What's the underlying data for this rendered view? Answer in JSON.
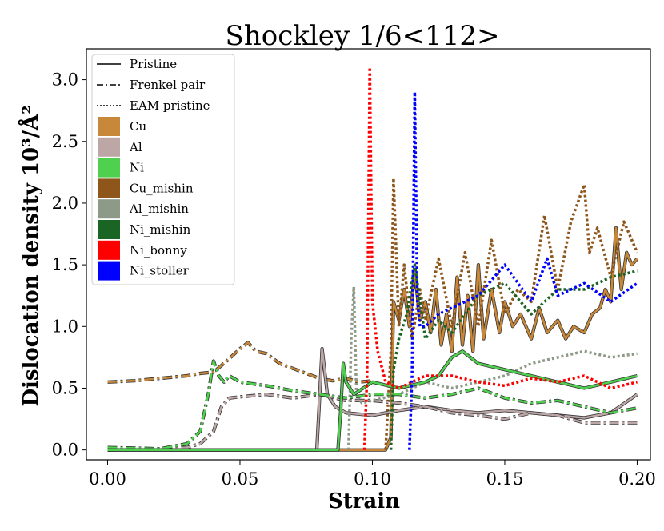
{
  "chart_data": {
    "type": "line",
    "title": "Shockley  1/6<112>",
    "xlabel": "Strain",
    "ylabel": "Dislocation density 10³/Å²",
    "xlim": [
      -0.008,
      0.205
    ],
    "ylim": [
      -0.08,
      3.25
    ],
    "xticks": [
      0.0,
      0.05,
      0.1,
      0.15,
      0.2
    ],
    "xtick_labels": [
      "0.00",
      "0.05",
      "0.10",
      "0.15",
      "0.20"
    ],
    "yticks": [
      0.0,
      0.5,
      1.0,
      1.5,
      2.0,
      2.5,
      3.0
    ],
    "ytick_labels": [
      "0.0",
      "0.5",
      "1.0",
      "1.5",
      "2.0",
      "2.5",
      "3.0"
    ],
    "grid": false,
    "legend_position": "top-left",
    "legend": {
      "styles": [
        {
          "label": "Pristine",
          "dash": "solid"
        },
        {
          "label": "Frenkel pair",
          "dash": "dashdot"
        },
        {
          "label": "EAM pristine",
          "dash": "dotted"
        }
      ],
      "materials": [
        {
          "label": "Cu",
          "color": "#c8883a"
        },
        {
          "label": "Al",
          "color": "#bca6a6"
        },
        {
          "label": "Ni",
          "color": "#4fd04f"
        },
        {
          "label": "Cu_mishin",
          "color": "#8f561c"
        },
        {
          "label": "Al_mishin",
          "color": "#8e9a88"
        },
        {
          "label": "Ni_mishin",
          "color": "#1a6424"
        },
        {
          "label": "Ni_bonny",
          "color": "#ff0000"
        },
        {
          "label": "Ni_stoller",
          "color": "#0000ff"
        }
      ]
    },
    "series": [
      {
        "name": "Cu Frenkel pair",
        "color": "#c8883a",
        "dash": "dashdot",
        "outline": true,
        "x": [
          0,
          0.01,
          0.02,
          0.03,
          0.035,
          0.04,
          0.045,
          0.05,
          0.053,
          0.056,
          0.06,
          0.065,
          0.07,
          0.075,
          0.08,
          0.085,
          0.09,
          0.095,
          0.1
        ],
        "y": [
          0.55,
          0.56,
          0.58,
          0.6,
          0.62,
          0.63,
          0.72,
          0.82,
          0.87,
          0.8,
          0.78,
          0.7,
          0.66,
          0.62,
          0.58,
          0.56,
          0.58,
          0.55,
          0.56
        ]
      },
      {
        "name": "Cu Pristine",
        "color": "#c8883a",
        "dash": "solid",
        "outline": true,
        "x": [
          0,
          0.105,
          0.107,
          0.108,
          0.11,
          0.112,
          0.114,
          0.116,
          0.118,
          0.12,
          0.122,
          0.124,
          0.126,
          0.128,
          0.13,
          0.132,
          0.134,
          0.136,
          0.138,
          0.14,
          0.142,
          0.145,
          0.148,
          0.15,
          0.153,
          0.156,
          0.16,
          0.163,
          0.166,
          0.17,
          0.173,
          0.176,
          0.18,
          0.183,
          0.186,
          0.188,
          0.19,
          0.192,
          0.194,
          0.196,
          0.198,
          0.2
        ],
        "y": [
          0,
          0,
          0.1,
          1.2,
          1.05,
          1.3,
          1.0,
          1.45,
          1.05,
          1.2,
          0.95,
          1.3,
          0.85,
          1.1,
          0.8,
          1.4,
          0.85,
          1.25,
          0.8,
          1.5,
          0.9,
          1.3,
          0.95,
          1.2,
          1.0,
          1.1,
          0.9,
          1.15,
          0.95,
          1.05,
          0.9,
          1.0,
          0.95,
          1.1,
          1.15,
          1.3,
          1.2,
          1.8,
          1.3,
          1.6,
          1.5,
          1.55
        ]
      },
      {
        "name": "Cu_mishin EAM pristine",
        "color": "#8f561c",
        "dash": "dotted",
        "x": [
          0.105,
          0.107,
          0.108,
          0.11,
          0.112,
          0.115,
          0.118,
          0.12,
          0.125,
          0.13,
          0.135,
          0.14,
          0.145,
          0.15,
          0.155,
          0.16,
          0.165,
          0.17,
          0.175,
          0.18,
          0.182,
          0.185,
          0.19,
          0.195,
          0.2
        ],
        "y": [
          0,
          0.8,
          2.2,
          1.0,
          1.5,
          0.9,
          1.3,
          1.05,
          1.55,
          1.0,
          1.6,
          1.0,
          1.7,
          1.1,
          1.3,
          1.2,
          1.9,
          1.3,
          1.85,
          2.15,
          1.6,
          1.8,
          1.4,
          1.85,
          1.6
        ]
      },
      {
        "name": "Al Pristine",
        "color": "#bca6a6",
        "dash": "solid",
        "outline": true,
        "x": [
          0,
          0.079,
          0.08,
          0.081,
          0.083,
          0.086,
          0.09,
          0.1,
          0.11,
          0.12,
          0.13,
          0.14,
          0.15,
          0.16,
          0.17,
          0.18,
          0.19,
          0.2
        ],
        "y": [
          0,
          0,
          0.4,
          0.82,
          0.45,
          0.35,
          0.3,
          0.28,
          0.32,
          0.35,
          0.32,
          0.3,
          0.32,
          0.3,
          0.28,
          0.26,
          0.3,
          0.45
        ]
      },
      {
        "name": "Al Frenkel pair",
        "color": "#bca6a6",
        "dash": "dashdot",
        "outline": true,
        "x": [
          0,
          0.02,
          0.03,
          0.035,
          0.04,
          0.043,
          0.046,
          0.05,
          0.06,
          0.07,
          0.08,
          0.09,
          0.1,
          0.11,
          0.12,
          0.13,
          0.14,
          0.15,
          0.16,
          0.17,
          0.18,
          0.19,
          0.2
        ],
        "y": [
          0,
          0.01,
          0.02,
          0.05,
          0.15,
          0.35,
          0.42,
          0.43,
          0.45,
          0.42,
          0.45,
          0.4,
          0.4,
          0.38,
          0.35,
          0.3,
          0.28,
          0.25,
          0.3,
          0.28,
          0.22,
          0.22,
          0.22
        ]
      },
      {
        "name": "Al_mishin EAM pristine",
        "color": "#8e9a88",
        "dash": "dotted",
        "x": [
          0.091,
          0.092,
          0.093,
          0.094,
          0.096,
          0.1,
          0.11,
          0.12,
          0.13,
          0.14,
          0.15,
          0.16,
          0.17,
          0.18,
          0.19,
          0.2
        ],
        "y": [
          0,
          0.9,
          1.32,
          0.45,
          0.38,
          0.4,
          0.45,
          0.55,
          0.5,
          0.55,
          0.6,
          0.7,
          0.75,
          0.8,
          0.75,
          0.78
        ]
      },
      {
        "name": "Ni Frenkel pair",
        "color": "#4fd04f",
        "dash": "dashdot",
        "outline": true,
        "x": [
          0,
          0.02,
          0.03,
          0.035,
          0.038,
          0.04,
          0.042,
          0.044,
          0.046,
          0.05,
          0.06,
          0.07,
          0.08,
          0.09,
          0.1,
          0.11,
          0.12,
          0.13,
          0.14,
          0.15,
          0.16,
          0.17,
          0.18,
          0.19,
          0.2
        ],
        "y": [
          0.02,
          0.01,
          0.05,
          0.15,
          0.45,
          0.72,
          0.6,
          0.55,
          0.6,
          0.55,
          0.52,
          0.48,
          0.45,
          0.42,
          0.45,
          0.45,
          0.42,
          0.45,
          0.5,
          0.42,
          0.38,
          0.4,
          0.35,
          0.3,
          0.34
        ]
      },
      {
        "name": "Ni Pristine",
        "color": "#4fd04f",
        "dash": "solid",
        "outline": true,
        "x": [
          0,
          0.087,
          0.088,
          0.089,
          0.09,
          0.093,
          0.1,
          0.11,
          0.12,
          0.125,
          0.13,
          0.134,
          0.14,
          0.15,
          0.16,
          0.17,
          0.18,
          0.19,
          0.2
        ],
        "y": [
          0,
          0,
          0.3,
          0.7,
          0.55,
          0.45,
          0.55,
          0.5,
          0.55,
          0.6,
          0.75,
          0.8,
          0.7,
          0.65,
          0.6,
          0.55,
          0.5,
          0.55,
          0.6
        ]
      },
      {
        "name": "Ni_mishin EAM pristine",
        "color": "#1a6424",
        "dash": "dotted",
        "x": [
          0.107,
          0.108,
          0.11,
          0.113,
          0.116,
          0.12,
          0.125,
          0.13,
          0.14,
          0.15,
          0.16,
          0.17,
          0.18,
          0.19,
          0.2
        ],
        "y": [
          0,
          0.65,
          0.9,
          1.1,
          1.5,
          0.9,
          1.05,
          0.95,
          1.25,
          1.35,
          1.1,
          1.3,
          1.3,
          1.4,
          1.45
        ]
      },
      {
        "name": "Ni_bonny EAM pristine",
        "color": "#ff0000",
        "dash": "dotted",
        "x": [
          0.097,
          0.098,
          0.099,
          0.1,
          0.102,
          0.105,
          0.11,
          0.12,
          0.13,
          0.14,
          0.15,
          0.16,
          0.17,
          0.18,
          0.19,
          0.2
        ],
        "y": [
          0,
          0.6,
          3.1,
          1.2,
          0.8,
          0.55,
          0.5,
          0.6,
          0.6,
          0.55,
          0.52,
          0.58,
          0.55,
          0.6,
          0.5,
          0.55
        ]
      },
      {
        "name": "Ni_stoller EAM pristine",
        "color": "#0000ff",
        "dash": "dotted",
        "x": [
          0.114,
          0.115,
          0.116,
          0.117,
          0.118,
          0.12,
          0.125,
          0.13,
          0.14,
          0.15,
          0.16,
          0.166,
          0.17,
          0.18,
          0.19,
          0.2
        ],
        "y": [
          0,
          0.6,
          2.9,
          1.2,
          1.0,
          1.0,
          1.1,
          1.15,
          1.25,
          1.5,
          1.2,
          1.55,
          1.25,
          1.35,
          1.2,
          1.35
        ]
      }
    ]
  }
}
